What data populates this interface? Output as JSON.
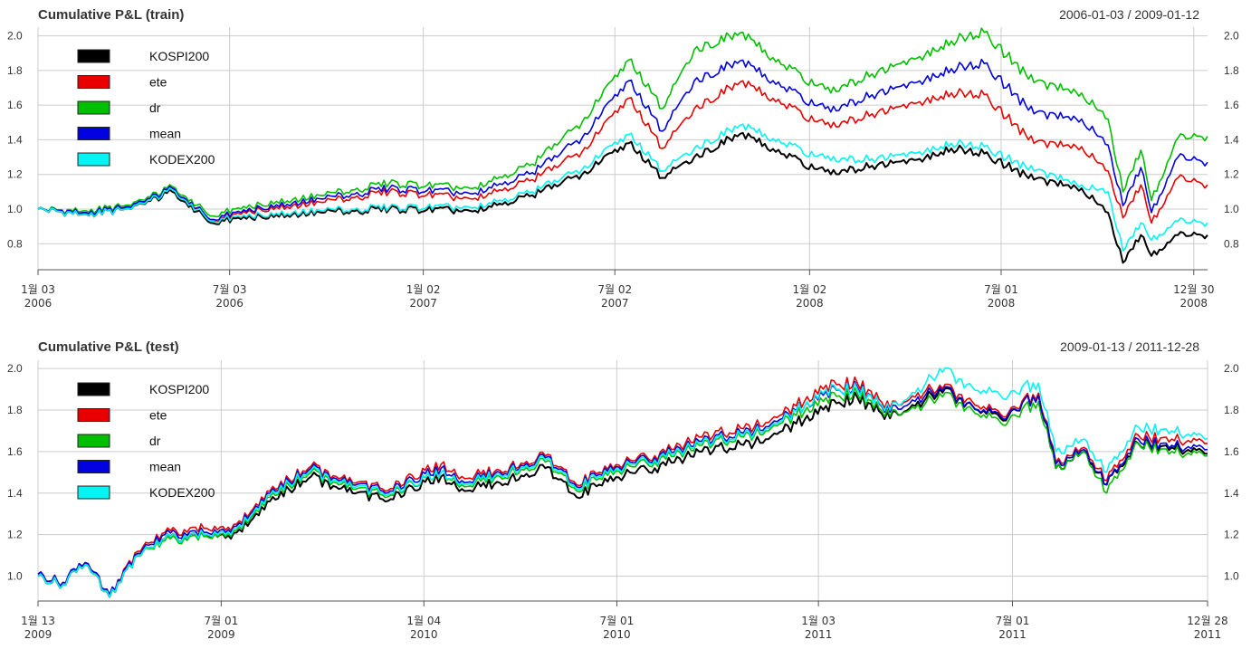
{
  "chart_data": [
    {
      "type": "line",
      "title": "Cumulative P&L (train)",
      "date_range": "2006-01-03 / 2009-01-12",
      "ylim": [
        0.65,
        2.05
      ],
      "y_ticks": [
        "0.8",
        "1.0",
        "1.2",
        "1.4",
        "1.6",
        "1.8",
        "2.0"
      ],
      "grid": true,
      "legend_position": "top-left",
      "x_range": [
        "2006-01-03",
        "2009-01-12"
      ],
      "x_ticks": [
        {
          "date": "2006-01-03",
          "label1": "1월 03",
          "label2": "2006"
        },
        {
          "date": "2006-07-03",
          "label1": "7월 03",
          "label2": "2006"
        },
        {
          "date": "2007-01-02",
          "label1": "1월 02",
          "label2": "2007"
        },
        {
          "date": "2007-07-02",
          "label1": "7월 02",
          "label2": "2007"
        },
        {
          "date": "2008-01-02",
          "label1": "1월 02",
          "label2": "2008"
        },
        {
          "date": "2008-07-01",
          "label1": "7월 01",
          "label2": "2008"
        },
        {
          "date": "2008-12-30",
          "label1": "12월 30",
          "label2": "2008"
        }
      ],
      "dates": [
        "2006-01-03",
        "2006-02-15",
        "2006-04-01",
        "2006-05-10",
        "2006-06-15",
        "2006-08-01",
        "2006-10-01",
        "2006-12-01",
        "2007-02-15",
        "2007-04-15",
        "2007-06-01",
        "2007-07-15",
        "2007-08-16",
        "2007-09-15",
        "2007-10-31",
        "2007-12-01",
        "2008-01-22",
        "2008-03-01",
        "2008-04-15",
        "2008-05-15",
        "2008-06-15",
        "2008-08-01",
        "2008-09-15",
        "2008-10-10",
        "2008-10-24",
        "2008-11-10",
        "2008-11-20",
        "2008-12-15",
        "2009-01-12"
      ],
      "series": [
        {
          "name": "KOSPI200",
          "color": "#000000",
          "values": [
            1.0,
            0.97,
            1.0,
            1.1,
            0.92,
            0.96,
            0.98,
            1.0,
            0.99,
            1.08,
            1.2,
            1.38,
            1.18,
            1.3,
            1.44,
            1.33,
            1.2,
            1.25,
            1.29,
            1.35,
            1.32,
            1.17,
            1.12,
            0.98,
            0.69,
            0.85,
            0.73,
            0.85,
            0.85
          ]
        },
        {
          "name": "ete",
          "color": "#e80000",
          "values": [
            1.0,
            0.98,
            1.01,
            1.12,
            0.93,
            1.0,
            1.04,
            1.1,
            1.06,
            1.17,
            1.33,
            1.64,
            1.35,
            1.58,
            1.74,
            1.62,
            1.47,
            1.55,
            1.62,
            1.67,
            1.66,
            1.38,
            1.36,
            1.22,
            0.95,
            1.14,
            0.92,
            1.18,
            1.14
          ]
        },
        {
          "name": "dr",
          "color": "#00bf00",
          "values": [
            1.0,
            0.99,
            1.02,
            1.13,
            0.96,
            1.03,
            1.08,
            1.15,
            1.12,
            1.26,
            1.5,
            1.86,
            1.58,
            1.92,
            2.02,
            1.85,
            1.67,
            1.78,
            1.88,
            1.97,
            2.02,
            1.73,
            1.67,
            1.52,
            1.1,
            1.34,
            1.05,
            1.41,
            1.42
          ]
        },
        {
          "name": "mean",
          "color": "#0000e0",
          "values": [
            1.0,
            0.98,
            1.01,
            1.12,
            0.94,
            1.01,
            1.06,
            1.12,
            1.09,
            1.21,
            1.41,
            1.74,
            1.45,
            1.74,
            1.86,
            1.72,
            1.56,
            1.66,
            1.74,
            1.81,
            1.84,
            1.55,
            1.52,
            1.37,
            1.02,
            1.24,
            0.98,
            1.3,
            1.27
          ]
        },
        {
          "name": "KODEX200",
          "color": "#00f4f4",
          "values": [
            1.0,
            0.97,
            1.0,
            1.11,
            0.93,
            0.97,
            0.99,
            1.01,
            1.01,
            1.1,
            1.23,
            1.43,
            1.22,
            1.35,
            1.49,
            1.39,
            1.28,
            1.29,
            1.33,
            1.38,
            1.36,
            1.22,
            1.14,
            1.1,
            0.76,
            0.92,
            0.82,
            0.93,
            0.92
          ]
        }
      ]
    },
    {
      "type": "line",
      "title": "Cumulative P&L (test)",
      "date_range": "2009-01-13 / 2011-12-28",
      "ylim": [
        0.88,
        2.04
      ],
      "y_ticks": [
        "1.0",
        "1.2",
        "1.4",
        "1.6",
        "1.8",
        "2.0"
      ],
      "grid": true,
      "legend_position": "top-left",
      "x_range": [
        "2009-01-13",
        "2011-12-28"
      ],
      "x_ticks": [
        {
          "date": "2009-01-13",
          "label1": "1월 13",
          "label2": "2009"
        },
        {
          "date": "2009-07-01",
          "label1": "7월 01",
          "label2": "2009"
        },
        {
          "date": "2010-01-04",
          "label1": "1월 04",
          "label2": "2010"
        },
        {
          "date": "2010-07-01",
          "label1": "7월 01",
          "label2": "2010"
        },
        {
          "date": "2011-01-03",
          "label1": "1월 03",
          "label2": "2011"
        },
        {
          "date": "2011-07-01",
          "label1": "7월 01",
          "label2": "2011"
        },
        {
          "date": "2011-12-28",
          "label1": "12월 28",
          "label2": "2011"
        }
      ],
      "dates": [
        "2009-01-13",
        "2009-02-05",
        "2009-02-20",
        "2009-03-03",
        "2009-03-20",
        "2009-04-15",
        "2009-05-10",
        "2009-06-15",
        "2009-07-10",
        "2009-08-15",
        "2009-09-22",
        "2009-10-15",
        "2009-11-27",
        "2010-01-20",
        "2010-02-08",
        "2010-03-15",
        "2010-04-26",
        "2010-05-25",
        "2010-06-20",
        "2010-08-05",
        "2010-09-15",
        "2010-11-05",
        "2010-12-01",
        "2011-01-10",
        "2011-02-08",
        "2011-03-10",
        "2011-04-10",
        "2011-04-25",
        "2011-05-25",
        "2011-06-20",
        "2011-07-25",
        "2011-08-10",
        "2011-09-05",
        "2011-09-26",
        "2011-10-25",
        "2011-11-25",
        "2011-12-28"
      ],
      "series": [
        {
          "name": "KOSPI200",
          "color": "#000000",
          "values": [
            1.0,
            0.96,
            1.05,
            1.02,
            0.9,
            1.1,
            1.18,
            1.2,
            1.18,
            1.36,
            1.48,
            1.43,
            1.37,
            1.48,
            1.42,
            1.45,
            1.52,
            1.38,
            1.47,
            1.52,
            1.6,
            1.64,
            1.7,
            1.82,
            1.86,
            1.76,
            1.84,
            1.9,
            1.82,
            1.76,
            1.88,
            1.52,
            1.6,
            1.44,
            1.64,
            1.62,
            1.59
          ]
        },
        {
          "name": "ete",
          "color": "#e80000",
          "values": [
            1.01,
            0.97,
            1.06,
            1.03,
            0.91,
            1.12,
            1.21,
            1.23,
            1.22,
            1.41,
            1.53,
            1.48,
            1.42,
            1.54,
            1.48,
            1.51,
            1.58,
            1.44,
            1.53,
            1.58,
            1.67,
            1.72,
            1.78,
            1.92,
            1.93,
            1.81,
            1.88,
            1.92,
            1.84,
            1.78,
            1.88,
            1.55,
            1.62,
            1.46,
            1.68,
            1.66,
            1.64
          ]
        },
        {
          "name": "dr",
          "color": "#00bf00",
          "values": [
            1.0,
            0.96,
            1.05,
            1.02,
            0.9,
            1.1,
            1.17,
            1.19,
            1.19,
            1.38,
            1.5,
            1.45,
            1.39,
            1.5,
            1.44,
            1.48,
            1.55,
            1.41,
            1.5,
            1.55,
            1.63,
            1.68,
            1.74,
            1.86,
            1.88,
            1.77,
            1.82,
            1.88,
            1.8,
            1.74,
            1.84,
            1.52,
            1.6,
            1.4,
            1.64,
            1.6,
            1.58
          ]
        },
        {
          "name": "mean",
          "color": "#0000e0",
          "values": [
            1.01,
            0.97,
            1.06,
            1.03,
            0.91,
            1.11,
            1.2,
            1.21,
            1.21,
            1.4,
            1.52,
            1.47,
            1.41,
            1.52,
            1.46,
            1.5,
            1.57,
            1.43,
            1.52,
            1.57,
            1.65,
            1.7,
            1.76,
            1.89,
            1.91,
            1.79,
            1.86,
            1.91,
            1.82,
            1.77,
            1.87,
            1.54,
            1.61,
            1.44,
            1.66,
            1.63,
            1.61
          ]
        },
        {
          "name": "KODEX200",
          "color": "#00f4f4",
          "values": [
            1.0,
            0.96,
            1.05,
            1.02,
            0.9,
            1.1,
            1.18,
            1.2,
            1.2,
            1.39,
            1.51,
            1.46,
            1.4,
            1.5,
            1.45,
            1.49,
            1.56,
            1.42,
            1.51,
            1.56,
            1.64,
            1.69,
            1.75,
            1.9,
            1.9,
            1.8,
            1.91,
            2.0,
            1.91,
            1.87,
            1.93,
            1.6,
            1.66,
            1.5,
            1.72,
            1.7,
            1.66
          ]
        }
      ]
    }
  ]
}
